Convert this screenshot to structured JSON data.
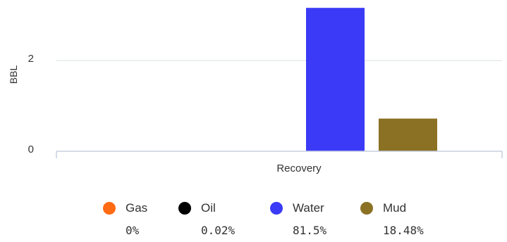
{
  "chart_data": {
    "type": "bar",
    "categories": [
      "Recovery"
    ],
    "series": [
      {
        "name": "Gas",
        "values": [
          0
        ],
        "color": "#ff6a13",
        "percent": "0%"
      },
      {
        "name": "Oil",
        "values": [
          0.0008
        ],
        "color": "#000000",
        "percent": "0.02%"
      },
      {
        "name": "Water",
        "values": [
          3.16
        ],
        "color": "#3a3af7",
        "percent": "81.5%"
      },
      {
        "name": "Mud",
        "values": [
          0.72
        ],
        "color": "#8b7124",
        "percent": "18.48%"
      }
    ],
    "ylabel": "BBL",
    "xlabel": "",
    "yticks": [
      "0",
      "2"
    ],
    "ylim": [
      0,
      3.2
    ],
    "grid": true,
    "legend_position": "bottom"
  }
}
